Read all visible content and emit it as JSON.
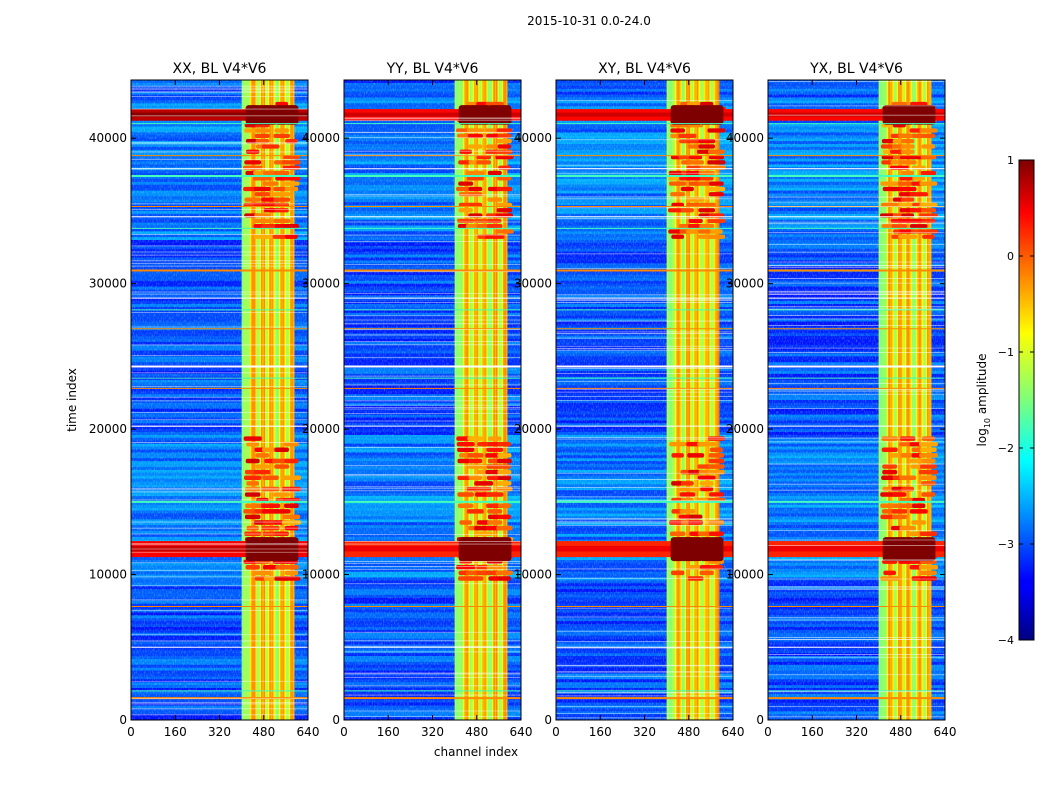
{
  "figure": {
    "suptitle": "2015-10-31 0.0-24.0"
  },
  "chart_data": {
    "type": "heatmap",
    "panels": [
      {
        "title": "XX, BL V4*V6"
      },
      {
        "title": "YY, BL V4*V6"
      },
      {
        "title": "XY, BL V4*V6"
      },
      {
        "title": "YX, BL V4*V6"
      }
    ],
    "xlabel": "channel index",
    "ylabel": "time index",
    "xlim": [
      0,
      640
    ],
    "ylim": [
      0,
      44000
    ],
    "x_ticks": [
      "0",
      "160",
      "320",
      "480",
      "640"
    ],
    "y_ticks": [
      "0",
      "10000",
      "20000",
      "30000",
      "40000"
    ],
    "x_tick_values": [
      0,
      160,
      320,
      480,
      640
    ],
    "y_tick_values": [
      0,
      10000,
      20000,
      30000,
      40000
    ],
    "colorbar": {
      "label_prefix": "log",
      "label_sub": "10",
      "label_suffix": " amplitude",
      "range": [
        -4,
        1
      ],
      "ticks": [
        "1",
        "0",
        "−1",
        "−2",
        "−3",
        "−4"
      ],
      "tick_values": [
        1,
        0,
        -1,
        -2,
        -3,
        -4
      ],
      "colormap": "jet"
    },
    "features": {
      "rfi_channel_band": [
        400,
        590
      ],
      "strong_channels": [
        440,
        475,
        505,
        545,
        580
      ],
      "strong_time_bands": [
        [
          41200,
          42000
        ],
        [
          11200,
          12300
        ]
      ],
      "enhanced_time_ranges": [
        [
          9500,
          19500
        ],
        [
          33000,
          42500
        ]
      ],
      "flagged_rows": [
        1500,
        2000,
        5000,
        7800,
        15000,
        20200,
        22800,
        23500,
        24300,
        26900,
        28200,
        29000,
        30900,
        33800,
        34600,
        35300,
        37400,
        37900,
        38800,
        41000
      ]
    }
  }
}
